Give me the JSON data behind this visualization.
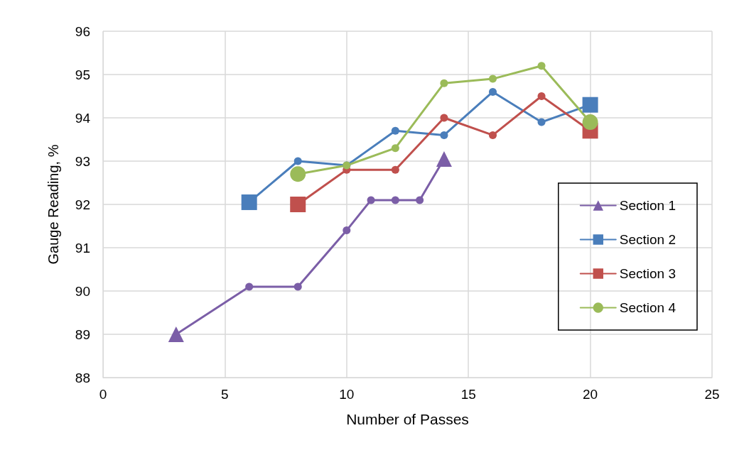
{
  "chart_data": {
    "type": "line",
    "xlabel": "Number of Passes",
    "ylabel": "Gauge Reading, %",
    "xlim": [
      0,
      25
    ],
    "xticks": [
      0,
      5,
      10,
      15,
      20,
      25
    ],
    "ylim": [
      88,
      96
    ],
    "yticks": [
      88,
      89,
      90,
      91,
      92,
      93,
      94,
      95,
      96
    ],
    "grid": true,
    "legend": "right",
    "marker": "circle",
    "line_style": "solid",
    "series": [
      {
        "name": "Section 1",
        "color": "#7b5ea7",
        "marker": "triangle",
        "x": [
          3,
          6,
          8,
          10,
          11,
          12,
          13,
          14
        ],
        "values": [
          89.0,
          90.1,
          90.1,
          91.4,
          92.1,
          92.1,
          92.1,
          93.05
        ]
      },
      {
        "name": "Section 2",
        "color": "#4a7ebb",
        "marker": "square",
        "x": [
          6,
          8,
          10,
          12,
          14,
          16,
          18,
          20
        ],
        "values": [
          92.05,
          93.0,
          92.9,
          93.7,
          93.6,
          94.6,
          93.9,
          94.3
        ]
      },
      {
        "name": "Section 3",
        "color": "#c0504d",
        "marker": "square",
        "x": [
          8,
          10,
          12,
          14,
          16,
          18,
          20
        ],
        "values": [
          92.0,
          92.8,
          92.8,
          94.0,
          93.6,
          94.5,
          93.7
        ]
      },
      {
        "name": "Section 4",
        "color": "#9bbb59",
        "marker": "circle",
        "x": [
          8,
          10,
          12,
          14,
          16,
          18,
          20
        ],
        "values": [
          92.7,
          92.9,
          93.3,
          94.8,
          94.9,
          95.2,
          93.9
        ]
      }
    ]
  }
}
